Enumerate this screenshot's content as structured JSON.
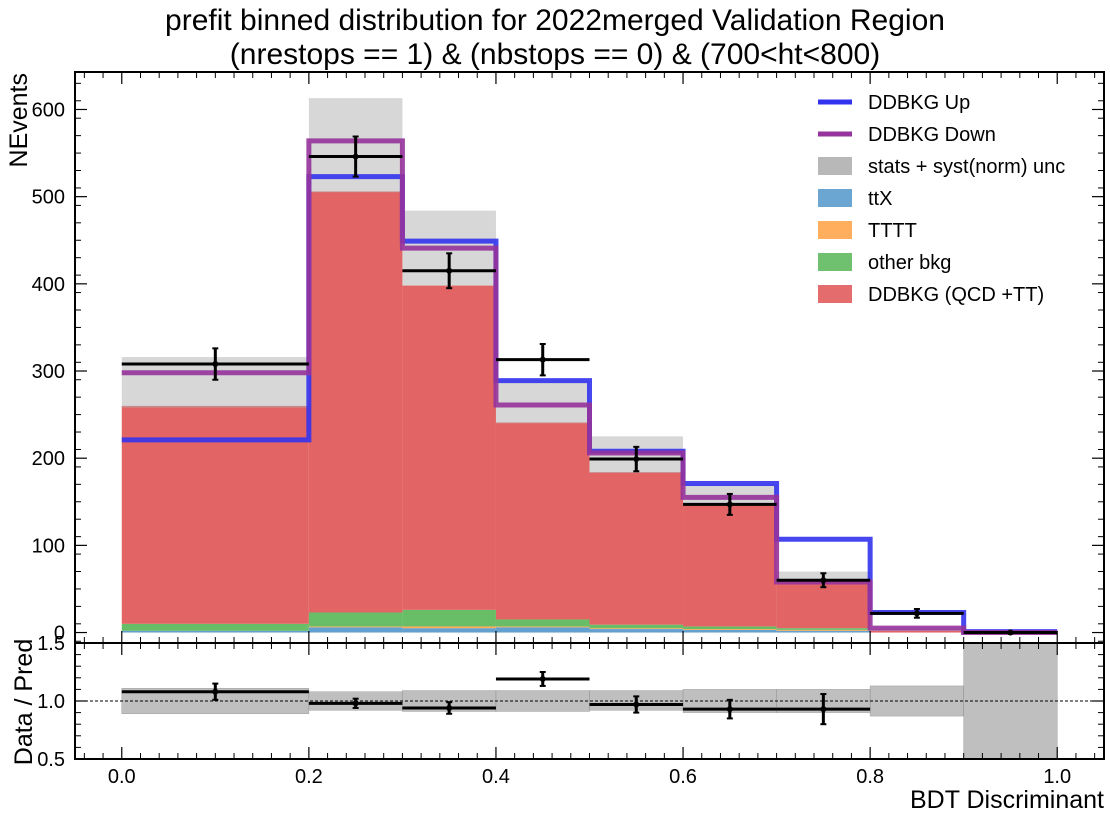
{
  "chart_data": {
    "type": "bar",
    "title": "prefit binned distribution for 2022merged Validation Region",
    "subtitle": "(nrestops == 1) & (nbstops == 0) & (700<ht<800)",
    "xlabel": "BDT Discriminant",
    "ylabel": "NEvents",
    "ratio_ylabel": "Data / Pred",
    "bin_edges": [
      0.0,
      0.2,
      0.3,
      0.4,
      0.5,
      0.6,
      0.7,
      0.8,
      0.9,
      1.0
    ],
    "xlim": [
      -0.05,
      1.05
    ],
    "ylim": [
      -12,
      643
    ],
    "ratio_ylim": [
      0.5,
      1.5
    ],
    "x_ticks": [
      0.0,
      0.2,
      0.4,
      0.6,
      0.8,
      1.0
    ],
    "x_tick_labels": [
      "0.0",
      "0.2",
      "0.4",
      "0.6",
      "0.8",
      "1.0"
    ],
    "y_ticks": [
      0,
      100,
      200,
      300,
      400,
      500,
      600
    ],
    "y_tick_labels": [
      "0",
      "100",
      "200",
      "300",
      "400",
      "500",
      "600"
    ],
    "ratio_ticks": [
      0.5,
      1.0,
      1.5
    ],
    "ratio_tick_labels": [
      "0.5",
      "1.0",
      "1.5"
    ],
    "legend_position": "top-right",
    "stack": [
      {
        "name": "ttX",
        "color": "#5a9ccc",
        "values": [
          2,
          6,
          5,
          6,
          4,
          3,
          2,
          0,
          0
        ]
      },
      {
        "name": "TTTT",
        "color": "#ffa54d",
        "values": [
          0,
          1,
          2,
          1,
          1,
          1,
          1,
          0,
          0
        ]
      },
      {
        "name": "other bkg",
        "color": "#5fba5f",
        "values": [
          8,
          16,
          19,
          8,
          4,
          3,
          2,
          0,
          0
        ]
      },
      {
        "name": "DDBKG (QCD +TT)",
        "color": "#e15c5c",
        "values": [
          250,
          483,
          372,
          226,
          175,
          141,
          55,
          2,
          0
        ]
      }
    ],
    "uncertainty": {
      "name": "stats + syst(norm) unc",
      "color": "#b0b0b0",
      "low": [
        258,
        505,
        398,
        240,
        183,
        147,
        58,
        2,
        0
      ],
      "high": [
        316,
        613,
        484,
        290,
        225,
        170,
        70,
        4,
        1
      ]
    },
    "lines": [
      {
        "name": "DDBKG Up",
        "color": "#3333ee",
        "values": [
          221,
          523,
          449,
          289,
          208,
          171,
          107,
          23,
          1
        ]
      },
      {
        "name": "DDBKG Down",
        "color": "#96339c",
        "values": [
          298,
          564,
          441,
          261,
          206,
          155,
          58,
          5,
          0
        ]
      }
    ],
    "data": {
      "x": [
        0.1,
        0.25,
        0.35,
        0.45,
        0.55,
        0.65,
        0.75,
        0.85,
        0.95
      ],
      "y": [
        308,
        546,
        415,
        313,
        199,
        147,
        60,
        22,
        0
      ],
      "yerr": [
        18,
        23,
        20,
        18,
        14,
        12,
        8,
        5,
        0
      ],
      "xerr": [
        0.1,
        0.05,
        0.05,
        0.05,
        0.05,
        0.05,
        0.05,
        0.05,
        0.05
      ]
    },
    "ratio": {
      "x": [
        0.1,
        0.25,
        0.35,
        0.45,
        0.55,
        0.65,
        0.75
      ],
      "y": [
        1.08,
        0.98,
        0.94,
        1.19,
        0.97,
        0.93,
        0.93
      ],
      "yerr": [
        0.07,
        0.04,
        0.05,
        0.06,
        0.07,
        0.08,
        0.13
      ],
      "xerr": [
        0.1,
        0.05,
        0.05,
        0.05,
        0.05,
        0.05,
        0.05
      ],
      "unc_low": [
        0.89,
        0.92,
        0.91,
        0.91,
        0.92,
        0.9,
        0.9,
        0.87,
        0.0
      ],
      "unc_high": [
        1.11,
        1.08,
        1.09,
        1.09,
        1.09,
        1.1,
        1.1,
        1.13,
        2.0
      ],
      "reference": 1.0
    }
  }
}
